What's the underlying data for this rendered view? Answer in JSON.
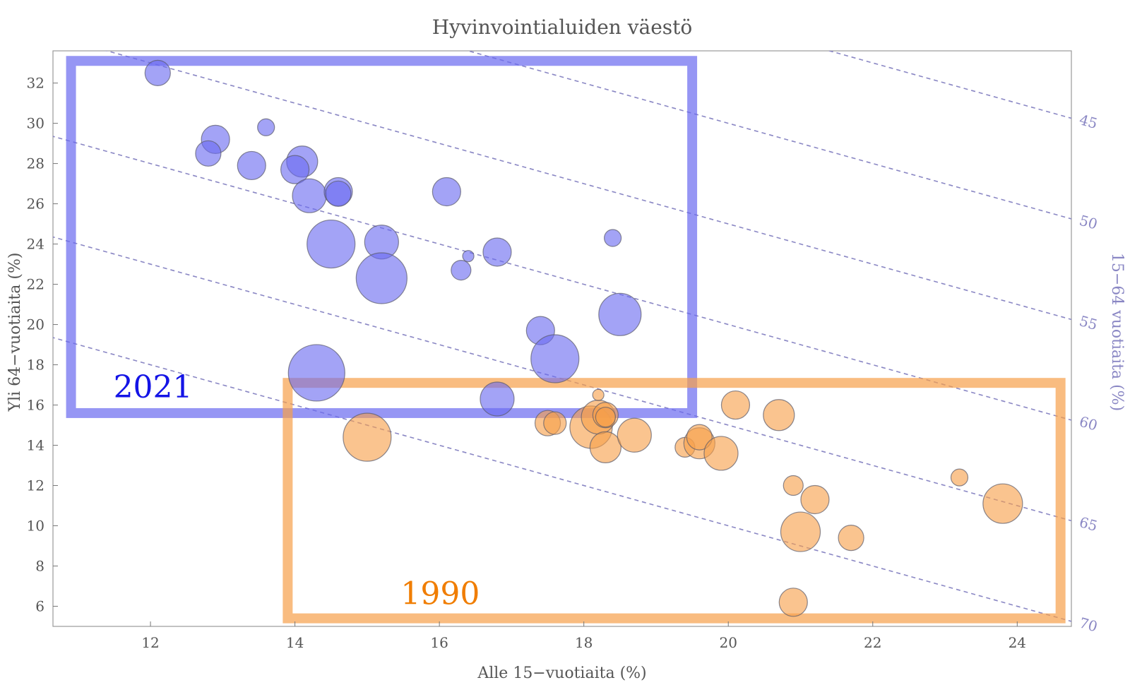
{
  "chart_data": {
    "type": "scatter",
    "title": "Hyvinvointialuiden väestö",
    "xlabel": "Alle 15−vuotiaita (%)",
    "ylabel": "Yli 64−vuotiaita (%)",
    "y2label": "15−64 vuotiaita (%)",
    "xlim": [
      10.65,
      24.75
    ],
    "ylim": [
      5.0,
      33.6
    ],
    "xticks": [
      "12",
      "14",
      "16",
      "18",
      "20",
      "22",
      "24"
    ],
    "yticks": [
      "6",
      "8",
      "10",
      "12",
      "14",
      "16",
      "18",
      "20",
      "22",
      "24",
      "26",
      "28",
      "30",
      "32"
    ],
    "working_age_lines": [
      "45",
      "50",
      "55",
      "60",
      "65",
      "70"
    ],
    "grid": false,
    "colors": {
      "2021": "#6a6af0",
      "1990": "#f7a04a",
      "2021_label": "#1414e6",
      "1990_label": "#f07d00",
      "dashed": "#8a87c4"
    },
    "series": [
      {
        "name": "2021",
        "box": {
          "x": [
            10.9,
            19.5
          ],
          "y": [
            15.6,
            33.1
          ]
        },
        "points": [
          {
            "x": 12.1,
            "y": 32.5,
            "size": 0.45
          },
          {
            "x": 12.9,
            "y": 29.2,
            "size": 0.5
          },
          {
            "x": 12.8,
            "y": 28.5,
            "size": 0.45
          },
          {
            "x": 13.6,
            "y": 29.8,
            "size": 0.3
          },
          {
            "x": 13.4,
            "y": 27.9,
            "size": 0.5
          },
          {
            "x": 14.1,
            "y": 28.1,
            "size": 0.55
          },
          {
            "x": 14.0,
            "y": 27.7,
            "size": 0.5
          },
          {
            "x": 14.2,
            "y": 26.4,
            "size": 0.6
          },
          {
            "x": 14.6,
            "y": 26.6,
            "size": 0.5
          },
          {
            "x": 14.6,
            "y": 26.5,
            "size": 0.45
          },
          {
            "x": 14.5,
            "y": 24.0,
            "size": 0.85
          },
          {
            "x": 15.2,
            "y": 24.1,
            "size": 0.6
          },
          {
            "x": 15.2,
            "y": 22.3,
            "size": 0.9
          },
          {
            "x": 16.1,
            "y": 26.6,
            "size": 0.5
          },
          {
            "x": 16.4,
            "y": 23.4,
            "size": 0.2
          },
          {
            "x": 16.3,
            "y": 22.7,
            "size": 0.35
          },
          {
            "x": 16.8,
            "y": 23.6,
            "size": 0.5
          },
          {
            "x": 18.4,
            "y": 24.3,
            "size": 0.3
          },
          {
            "x": 17.4,
            "y": 19.7,
            "size": 0.5
          },
          {
            "x": 18.5,
            "y": 20.5,
            "size": 0.75
          },
          {
            "x": 17.6,
            "y": 18.3,
            "size": 0.85
          },
          {
            "x": 14.3,
            "y": 17.6,
            "size": 1.0
          },
          {
            "x": 16.8,
            "y": 16.3,
            "size": 0.6
          }
        ]
      },
      {
        "name": "1990",
        "box": {
          "x": [
            13.9,
            24.6
          ],
          "y": [
            5.4,
            17.1
          ]
        },
        "points": [
          {
            "x": 15.0,
            "y": 14.4,
            "size": 0.85
          },
          {
            "x": 17.5,
            "y": 15.1,
            "size": 0.45
          },
          {
            "x": 17.6,
            "y": 15.1,
            "size": 0.4
          },
          {
            "x": 18.1,
            "y": 14.9,
            "size": 0.75
          },
          {
            "x": 18.2,
            "y": 15.4,
            "size": 0.6
          },
          {
            "x": 18.2,
            "y": 16.5,
            "size": 0.2
          },
          {
            "x": 18.3,
            "y": 15.5,
            "size": 0.45
          },
          {
            "x": 18.3,
            "y": 15.4,
            "size": 0.35
          },
          {
            "x": 18.3,
            "y": 13.9,
            "size": 0.55
          },
          {
            "x": 18.7,
            "y": 14.5,
            "size": 0.6
          },
          {
            "x": 19.4,
            "y": 13.9,
            "size": 0.35
          },
          {
            "x": 19.6,
            "y": 14.1,
            "size": 0.55
          },
          {
            "x": 19.6,
            "y": 14.4,
            "size": 0.45
          },
          {
            "x": 19.9,
            "y": 13.6,
            "size": 0.6
          },
          {
            "x": 20.1,
            "y": 16.0,
            "size": 0.5
          },
          {
            "x": 20.7,
            "y": 15.5,
            "size": 0.55
          },
          {
            "x": 20.9,
            "y": 12.0,
            "size": 0.35
          },
          {
            "x": 21.2,
            "y": 11.3,
            "size": 0.5
          },
          {
            "x": 21.0,
            "y": 9.7,
            "size": 0.7
          },
          {
            "x": 21.7,
            "y": 9.4,
            "size": 0.45
          },
          {
            "x": 20.9,
            "y": 6.2,
            "size": 0.5
          },
          {
            "x": 23.2,
            "y": 12.4,
            "size": 0.3
          },
          {
            "x": 23.8,
            "y": 11.1,
            "size": 0.7
          }
        ]
      }
    ]
  }
}
